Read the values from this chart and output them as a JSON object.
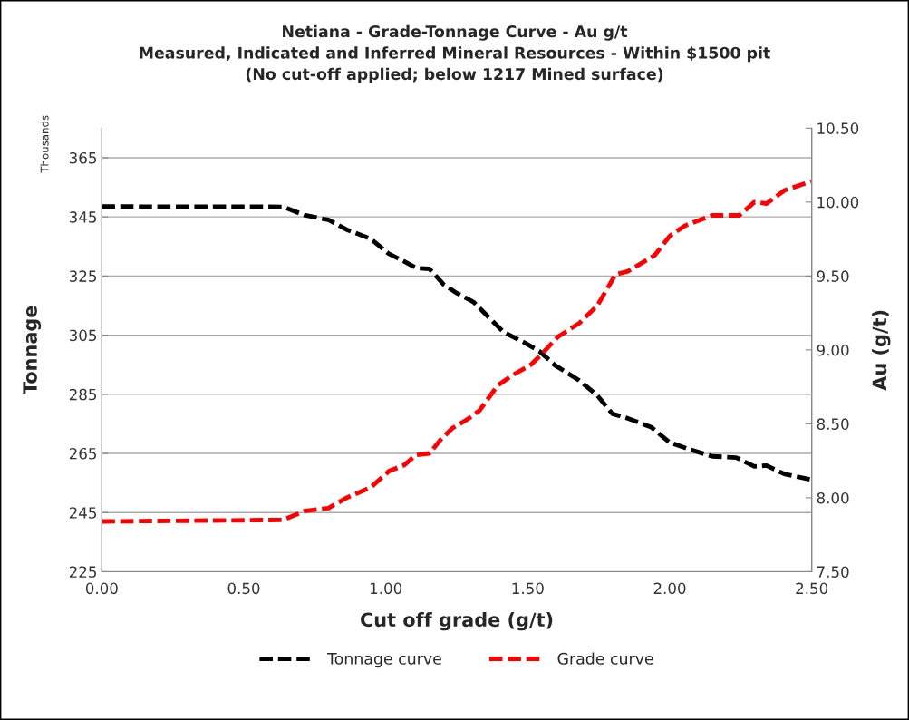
{
  "chart_data": {
    "type": "line",
    "title": "Netiana - Grade-Tonnage Curve - Au g/t\nMeasured, Indicated and Inferred Mineral Resources - Within $1500 pit\n(No cut-off applied; below 1217 Mined surface)",
    "xlabel": "Cut off grade (g/t)",
    "ylabel": "Tonnage",
    "y2label": "Au (g/t)",
    "annotations": [
      "Thousands"
    ],
    "xlim": [
      0,
      2.5
    ],
    "xticks": [
      {
        "value": 0,
        "label": "0.00"
      },
      {
        "value": 0.5,
        "label": "0.50"
      },
      {
        "value": 1,
        "label": "1.00"
      },
      {
        "value": 1.5,
        "label": "1.50"
      },
      {
        "value": 2,
        "label": "2.00"
      },
      {
        "value": 2.5,
        "label": "2.50"
      }
    ],
    "ylim": [
      225,
      375
    ],
    "yticks": [
      225,
      245,
      265,
      285,
      305,
      325,
      345,
      365
    ],
    "y2lim": [
      7.5,
      10.5
    ],
    "y2ticks": [
      {
        "value": 7.5,
        "label": "7.50"
      },
      {
        "value": 8,
        "label": "8.00"
      },
      {
        "value": 8.5,
        "label": "8.50"
      },
      {
        "value": 9,
        "label": "9.00"
      },
      {
        "value": 9.5,
        "label": "9.50"
      },
      {
        "value": 10,
        "label": "10.00"
      },
      {
        "value": 10.5,
        "label": "10.50"
      }
    ],
    "grid": "y",
    "legend": "bottom",
    "line_style": "dashed",
    "marker": "none",
    "series": [
      {
        "name": "Tonnage curve",
        "color": "#000000",
        "x": [
          0,
          0.638,
          0.713,
          0.798,
          0.862,
          0.947,
          1.011,
          1.064,
          1.107,
          1.154,
          1.202,
          1.245,
          1.309,
          1.362,
          1.415,
          1.49,
          1.543,
          1.596,
          1.681,
          1.745,
          1.798,
          1.851,
          1.936,
          2.0,
          2.075,
          2.149,
          2.234,
          2.298,
          2.341,
          2.405,
          2.495
        ],
        "values": [
          348.5,
          348.4,
          345.6,
          344.0,
          340.7,
          337.6,
          332.5,
          330.0,
          327.7,
          327.4,
          322.3,
          319.5,
          316.2,
          311.1,
          306.0,
          302.4,
          299.4,
          294.8,
          289.7,
          284.6,
          278.4,
          276.9,
          273.8,
          268.7,
          266.2,
          264.0,
          263.6,
          260.6,
          260.9,
          258.0,
          256.2
        ]
      },
      {
        "name": "Grade curve",
        "color": "#ff0000",
        "axis": "y2",
        "x": [
          0,
          0.638,
          0.713,
          0.798,
          0.862,
          0.947,
          1.011,
          1.064,
          1.107,
          1.154,
          1.192,
          1.234,
          1.287,
          1.33,
          1.394,
          1.447,
          1.511,
          1.553,
          1.607,
          1.681,
          1.745,
          1.809,
          1.851,
          1.947,
          2.0,
          2.053,
          2.149,
          2.245,
          2.298,
          2.341,
          2.405,
          2.498
        ],
        "values": [
          7.84,
          7.85,
          7.91,
          7.93,
          8.0,
          8.07,
          8.18,
          8.22,
          8.29,
          8.3,
          8.39,
          8.47,
          8.53,
          8.59,
          8.76,
          8.83,
          8.9,
          8.98,
          9.09,
          9.18,
          9.3,
          9.51,
          9.53,
          9.64,
          9.77,
          9.84,
          9.91,
          9.91,
          10.0,
          9.99,
          10.08,
          10.14
        ]
      }
    ]
  }
}
